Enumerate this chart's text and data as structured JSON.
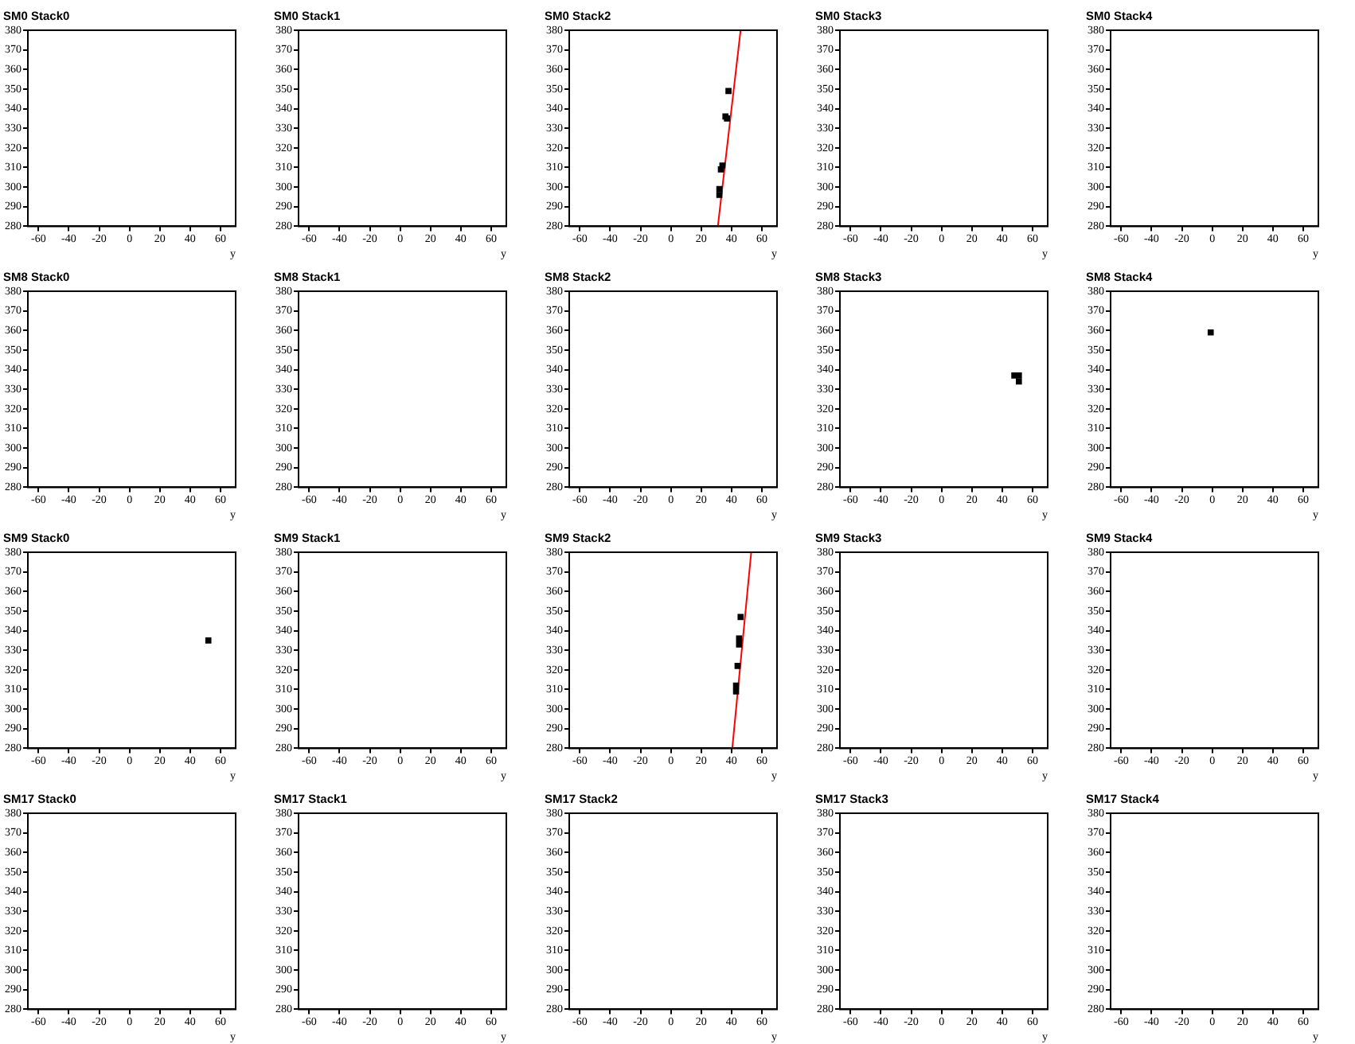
{
  "chart_data": [
    {
      "type": "scatter",
      "title": "SM0 Stack0",
      "xlabel": "y",
      "xlim": [
        -67,
        70
      ],
      "xticks": [
        -60,
        -40,
        -20,
        0,
        20,
        40,
        60
      ],
      "ylim": [
        280,
        380
      ],
      "yticks": [
        280,
        290,
        300,
        310,
        320,
        330,
        340,
        350,
        360,
        370,
        380
      ]
    },
    {
      "type": "scatter",
      "title": "SM0 Stack1",
      "xlabel": "y",
      "xlim": [
        -67,
        70
      ],
      "xticks": [
        -60,
        -40,
        -20,
        0,
        20,
        40,
        60
      ],
      "ylim": [
        280,
        380
      ],
      "yticks": [
        280,
        290,
        300,
        310,
        320,
        330,
        340,
        350,
        360,
        370,
        380
      ]
    },
    {
      "type": "scatter",
      "title": "SM0 Stack2",
      "xlabel": "y",
      "xlim": [
        -67,
        70
      ],
      "xticks": [
        -60,
        -40,
        -20,
        0,
        20,
        40,
        60
      ],
      "ylim": [
        280,
        380
      ],
      "yticks": [
        280,
        290,
        300,
        310,
        320,
        330,
        340,
        350,
        360,
        370,
        380
      ],
      "series": [
        {
          "type": "scatter",
          "marker": "square",
          "color": "#000000",
          "x": [
            38,
            36,
            37,
            34,
            33,
            32,
            32
          ],
          "values": [
            349,
            336,
            335,
            311,
            309,
            299,
            296
          ]
        },
        {
          "type": "line",
          "marker": "none",
          "color": "#ff0000",
          "x": [
            31,
            46
          ],
          "values": [
            280,
            380
          ]
        }
      ]
    },
    {
      "type": "scatter",
      "title": "SM0 Stack3",
      "xlabel": "y",
      "xlim": [
        -67,
        70
      ],
      "xticks": [
        -60,
        -40,
        -20,
        0,
        20,
        40,
        60
      ],
      "ylim": [
        280,
        380
      ],
      "yticks": [
        280,
        290,
        300,
        310,
        320,
        330,
        340,
        350,
        360,
        370,
        380
      ]
    },
    {
      "type": "scatter",
      "title": "SM0 Stack4",
      "xlabel": "y",
      "xlim": [
        -67,
        70
      ],
      "xticks": [
        -60,
        -40,
        -20,
        0,
        20,
        40,
        60
      ],
      "ylim": [
        280,
        380
      ],
      "yticks": [
        280,
        290,
        300,
        310,
        320,
        330,
        340,
        350,
        360,
        370,
        380
      ]
    },
    {
      "type": "scatter",
      "title": "SM8 Stack0",
      "xlabel": "y",
      "xlim": [
        -67,
        70
      ],
      "xticks": [
        -60,
        -40,
        -20,
        0,
        20,
        40,
        60
      ],
      "ylim": [
        280,
        380
      ],
      "yticks": [
        280,
        290,
        300,
        310,
        320,
        330,
        340,
        350,
        360,
        370,
        380
      ]
    },
    {
      "type": "scatter",
      "title": "SM8 Stack1",
      "xlabel": "y",
      "xlim": [
        -67,
        70
      ],
      "xticks": [
        -60,
        -40,
        -20,
        0,
        20,
        40,
        60
      ],
      "ylim": [
        280,
        380
      ],
      "yticks": [
        280,
        290,
        300,
        310,
        320,
        330,
        340,
        350,
        360,
        370,
        380
      ]
    },
    {
      "type": "scatter",
      "title": "SM8 Stack2",
      "xlabel": "y",
      "xlim": [
        -67,
        70
      ],
      "xticks": [
        -60,
        -40,
        -20,
        0,
        20,
        40,
        60
      ],
      "ylim": [
        280,
        380
      ],
      "yticks": [
        280,
        290,
        300,
        310,
        320,
        330,
        340,
        350,
        360,
        370,
        380
      ]
    },
    {
      "type": "scatter",
      "title": "SM8 Stack3",
      "xlabel": "y",
      "xlim": [
        -67,
        70
      ],
      "xticks": [
        -60,
        -40,
        -20,
        0,
        20,
        40,
        60
      ],
      "ylim": [
        280,
        380
      ],
      "yticks": [
        280,
        290,
        300,
        310,
        320,
        330,
        340,
        350,
        360,
        370,
        380
      ],
      "series": [
        {
          "type": "scatter",
          "marker": "square",
          "color": "#000000",
          "x": [
            48,
            51,
            51
          ],
          "values": [
            337,
            337,
            334
          ]
        }
      ]
    },
    {
      "type": "scatter",
      "title": "SM8 Stack4",
      "xlabel": "y",
      "xlim": [
        -67,
        70
      ],
      "xticks": [
        -60,
        -40,
        -20,
        0,
        20,
        40,
        60
      ],
      "ylim": [
        280,
        380
      ],
      "yticks": [
        280,
        290,
        300,
        310,
        320,
        330,
        340,
        350,
        360,
        370,
        380
      ],
      "series": [
        {
          "type": "scatter",
          "marker": "square",
          "color": "#000000",
          "x": [
            -1
          ],
          "values": [
            359
          ]
        }
      ]
    },
    {
      "type": "scatter",
      "title": "SM9 Stack0",
      "xlabel": "y",
      "xlim": [
        -67,
        70
      ],
      "xticks": [
        -60,
        -40,
        -20,
        0,
        20,
        40,
        60
      ],
      "ylim": [
        280,
        380
      ],
      "yticks": [
        280,
        290,
        300,
        310,
        320,
        330,
        340,
        350,
        360,
        370,
        380
      ],
      "series": [
        {
          "type": "scatter",
          "marker": "square",
          "color": "#000000",
          "x": [
            52
          ],
          "values": [
            335
          ]
        }
      ]
    },
    {
      "type": "scatter",
      "title": "SM9 Stack1",
      "xlabel": "y",
      "xlim": [
        -67,
        70
      ],
      "xticks": [
        -60,
        -40,
        -20,
        0,
        20,
        40,
        60
      ],
      "ylim": [
        280,
        380
      ],
      "yticks": [
        280,
        290,
        300,
        310,
        320,
        330,
        340,
        350,
        360,
        370,
        380
      ]
    },
    {
      "type": "scatter",
      "title": "SM9 Stack2",
      "xlabel": "y",
      "xlim": [
        -67,
        70
      ],
      "xticks": [
        -60,
        -40,
        -20,
        0,
        20,
        40,
        60
      ],
      "ylim": [
        280,
        380
      ],
      "yticks": [
        280,
        290,
        300,
        310,
        320,
        330,
        340,
        350,
        360,
        370,
        380
      ],
      "series": [
        {
          "type": "scatter",
          "marker": "square",
          "color": "#000000",
          "x": [
            46,
            45,
            45,
            44,
            43,
            43
          ],
          "values": [
            347,
            336,
            333,
            322,
            312,
            309
          ]
        },
        {
          "type": "line",
          "marker": "none",
          "color": "#ff0000",
          "x": [
            40.5,
            53
          ],
          "values": [
            280,
            380
          ]
        }
      ]
    },
    {
      "type": "scatter",
      "title": "SM9 Stack3",
      "xlabel": "y",
      "xlim": [
        -67,
        70
      ],
      "xticks": [
        -60,
        -40,
        -20,
        0,
        20,
        40,
        60
      ],
      "ylim": [
        280,
        380
      ],
      "yticks": [
        280,
        290,
        300,
        310,
        320,
        330,
        340,
        350,
        360,
        370,
        380
      ]
    },
    {
      "type": "scatter",
      "title": "SM9 Stack4",
      "xlabel": "y",
      "xlim": [
        -67,
        70
      ],
      "xticks": [
        -60,
        -40,
        -20,
        0,
        20,
        40,
        60
      ],
      "ylim": [
        280,
        380
      ],
      "yticks": [
        280,
        290,
        300,
        310,
        320,
        330,
        340,
        350,
        360,
        370,
        380
      ]
    },
    {
      "type": "scatter",
      "title": "SM17 Stack0",
      "xlabel": "y",
      "xlim": [
        -67,
        70
      ],
      "xticks": [
        -60,
        -40,
        -20,
        0,
        20,
        40,
        60
      ],
      "ylim": [
        280,
        380
      ],
      "yticks": [
        280,
        290,
        300,
        310,
        320,
        330,
        340,
        350,
        360,
        370,
        380
      ]
    },
    {
      "type": "scatter",
      "title": "SM17 Stack1",
      "xlabel": "y",
      "xlim": [
        -67,
        70
      ],
      "xticks": [
        -60,
        -40,
        -20,
        0,
        20,
        40,
        60
      ],
      "ylim": [
        280,
        380
      ],
      "yticks": [
        280,
        290,
        300,
        310,
        320,
        330,
        340,
        350,
        360,
        370,
        380
      ]
    },
    {
      "type": "scatter",
      "title": "SM17 Stack2",
      "xlabel": "y",
      "xlim": [
        -67,
        70
      ],
      "xticks": [
        -60,
        -40,
        -20,
        0,
        20,
        40,
        60
      ],
      "ylim": [
        280,
        380
      ],
      "yticks": [
        280,
        290,
        300,
        310,
        320,
        330,
        340,
        350,
        360,
        370,
        380
      ]
    },
    {
      "type": "scatter",
      "title": "SM17 Stack3",
      "xlabel": "y",
      "xlim": [
        -67,
        70
      ],
      "xticks": [
        -60,
        -40,
        -20,
        0,
        20,
        40,
        60
      ],
      "ylim": [
        280,
        380
      ],
      "yticks": [
        280,
        290,
        300,
        310,
        320,
        330,
        340,
        350,
        360,
        370,
        380
      ]
    },
    {
      "type": "scatter",
      "title": "SM17 Stack4",
      "xlabel": "y",
      "xlim": [
        -67,
        70
      ],
      "xticks": [
        -60,
        -40,
        -20,
        0,
        20,
        40,
        60
      ],
      "ylim": [
        280,
        380
      ],
      "yticks": [
        280,
        290,
        300,
        310,
        320,
        330,
        340,
        350,
        360,
        370,
        380
      ]
    }
  ]
}
